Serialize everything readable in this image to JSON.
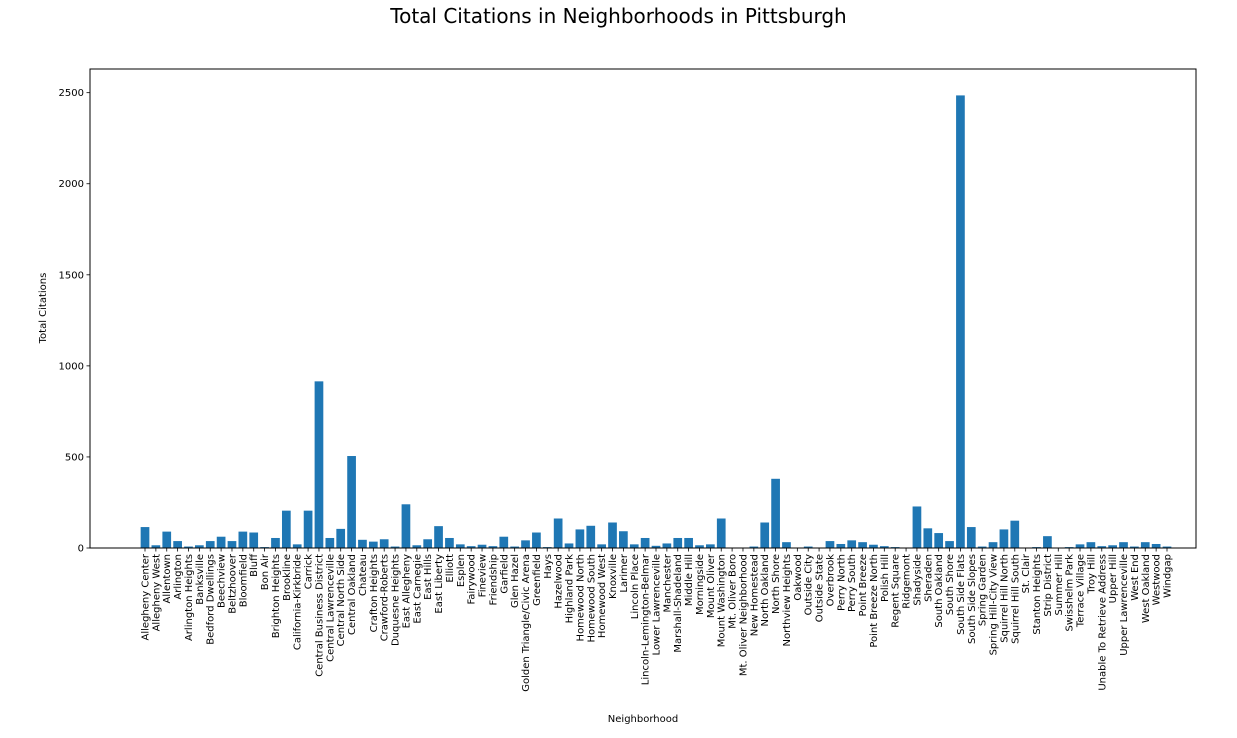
{
  "chart_data": {
    "type": "bar",
    "title": "Total Citations in Neighborhoods in Pittsburgh",
    "xlabel": "Neighborhood",
    "ylabel": "Total Citations",
    "ylim": [
      0,
      2630
    ],
    "yticks": [
      0,
      500,
      1000,
      1500,
      2000,
      2500
    ],
    "grid": false,
    "bar_color": "#1f77b4",
    "categories": [
      "Allegheny Center",
      "Allegheny West",
      "Allentown",
      "Arlington",
      "Arlington Heights",
      "Banksville",
      "Bedford Dwellings",
      "Beechview",
      "Beltzhoover",
      "Bloomfield",
      "Bluff",
      "Bon Air",
      "Brighton Heights",
      "Brookline",
      "California-Kirkbride",
      "Carrick",
      "Central Business District",
      "Central Lawrenceville",
      "Central North Side",
      "Central Oakland",
      "Chateau",
      "Crafton Heights",
      "Crawford-Roberts",
      "Duquesne Heights",
      "East Allegheny",
      "East Carnegie",
      "East Hills",
      "East Liberty",
      "Elliott",
      "Esplen",
      "Fairywood",
      "Fineview",
      "Friendship",
      "Garfield",
      "Glen Hazel",
      "Golden Triangle/Civic Arena",
      "Greenfield",
      "Hays",
      "Hazelwood",
      "Highland Park",
      "Homewood North",
      "Homewood South",
      "Homewood West",
      "Knoxville",
      "Larimer",
      "Lincoln Place",
      "Lincoln-Lemington-Belmar",
      "Lower Lawrenceville",
      "Manchester",
      "Marshall-Shadeland",
      "Middle Hill",
      "Morningside",
      "Mount Oliver",
      "Mount Washington",
      "Mt. Oliver Boro",
      "Mt. Oliver Neighborhood",
      "New Homestead",
      "North Oakland",
      "North Shore",
      "Northview Heights",
      "Oakwood",
      "Outside City",
      "Outside State",
      "Overbrook",
      "Perry North",
      "Perry South",
      "Point Breeze",
      "Point Breeze North",
      "Polish Hill",
      "Regent Square",
      "Ridgemont",
      "Shadyside",
      "Sheraden",
      "South Oakland",
      "South Shore",
      "South Side Flats",
      "South Side Slopes",
      "Spring Garden",
      "Spring Hill-City View",
      "Squirrel Hill North",
      "Squirrel Hill South",
      "St. Clair",
      "Stanton Heights",
      "Strip District",
      "Summer Hill",
      "Swisshelm Park",
      "Terrace Village",
      "Troy Hill",
      "Unable To Retrieve Address",
      "Upper Hill",
      "Upper Lawrenceville",
      "West End",
      "West Oakland",
      "Westwood",
      "Windgap"
    ],
    "values": [
      115,
      15,
      90,
      38,
      8,
      15,
      38,
      62,
      38,
      90,
      85,
      5,
      55,
      205,
      20,
      205,
      915,
      55,
      105,
      505,
      45,
      35,
      48,
      8,
      240,
      15,
      48,
      120,
      55,
      20,
      10,
      18,
      10,
      62,
      8,
      42,
      85,
      5,
      162,
      25,
      102,
      122,
      20,
      140,
      92,
      20,
      55,
      12,
      25,
      55,
      55,
      15,
      20,
      162,
      2,
      2,
      8,
      140,
      380,
      32,
      2,
      8,
      2,
      38,
      22,
      42,
      32,
      18,
      10,
      5,
      2,
      228,
      108,
      82,
      38,
      2485,
      115,
      8,
      32,
      102,
      150,
      2,
      5,
      65,
      2,
      5,
      20,
      32,
      10,
      15,
      32,
      8,
      32,
      22,
      8
    ]
  }
}
